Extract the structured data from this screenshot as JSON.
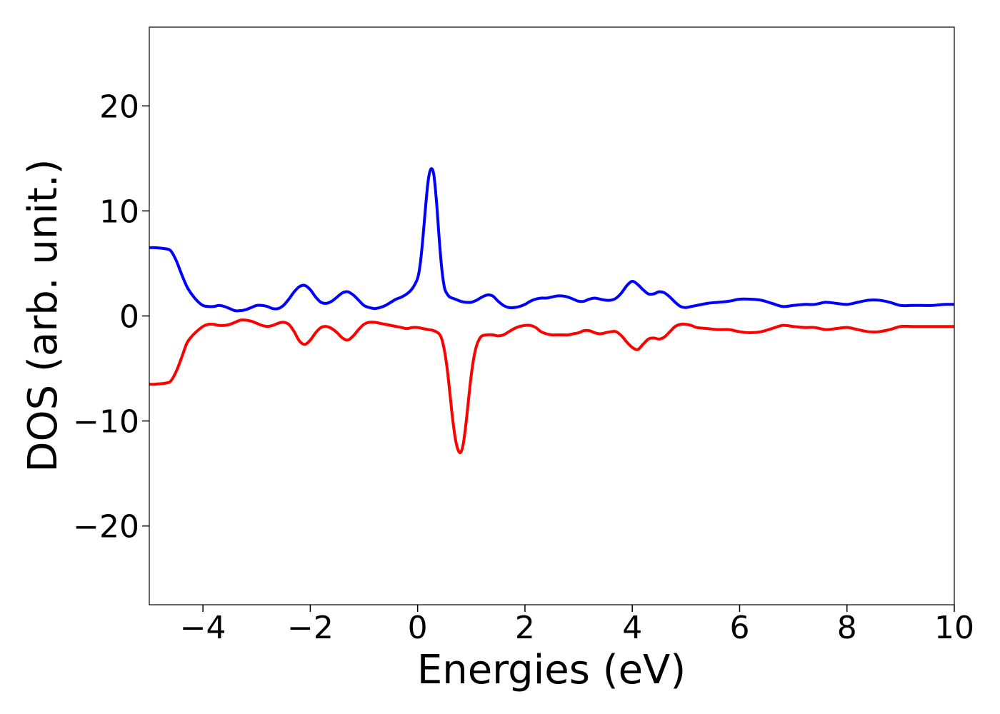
{
  "chart_data": {
    "type": "line",
    "title": "",
    "xlabel": "Energies (eV)",
    "ylabel": "DOS (arb. unit.)",
    "xlim": [
      -5,
      10
    ],
    "ylim": [
      -27.5,
      27.5
    ],
    "grid": false,
    "x_ticks": [
      -4,
      -2,
      0,
      2,
      4,
      6,
      8,
      10
    ],
    "x_tick_labels": [
      "−4",
      "−2",
      "0",
      "2",
      "4",
      "6",
      "8",
      "10"
    ],
    "y_ticks": [
      -20,
      -10,
      0,
      10,
      20
    ],
    "y_tick_labels": [
      "−20",
      "−10",
      "0",
      "10",
      "20"
    ],
    "series": [
      {
        "color": "#0000ff",
        "x": [
          -5.0,
          -4.9,
          -4.7,
          -4.6,
          -4.5,
          -4.4,
          -4.3,
          -4.2,
          -4.1,
          -4.0,
          -3.9,
          -3.8,
          -3.7,
          -3.6,
          -3.5,
          -3.4,
          -3.3,
          -3.2,
          -3.1,
          -3.0,
          -2.9,
          -2.8,
          -2.7,
          -2.6,
          -2.5,
          -2.4,
          -2.3,
          -2.2,
          -2.1,
          -2.0,
          -1.9,
          -1.8,
          -1.7,
          -1.6,
          -1.5,
          -1.4,
          -1.3,
          -1.2,
          -1.1,
          -1.0,
          -0.9,
          -0.8,
          -0.7,
          -0.6,
          -0.5,
          -0.4,
          -0.3,
          -0.2,
          -0.1,
          0.0,
          0.05,
          0.1,
          0.15,
          0.2,
          0.25,
          0.3,
          0.35,
          0.4,
          0.45,
          0.5,
          0.55,
          0.6,
          0.7,
          0.8,
          0.9,
          1.0,
          1.1,
          1.2,
          1.3,
          1.4,
          1.5,
          1.6,
          1.7,
          1.8,
          1.9,
          2.0,
          2.1,
          2.2,
          2.3,
          2.4,
          2.5,
          2.6,
          2.7,
          2.8,
          2.9,
          3.0,
          3.1,
          3.2,
          3.3,
          3.4,
          3.5,
          3.6,
          3.7,
          3.8,
          3.9,
          4.0,
          4.1,
          4.2,
          4.3,
          4.4,
          4.5,
          4.6,
          4.7,
          4.8,
          4.9,
          5.0,
          5.1,
          5.2,
          5.4,
          5.6,
          5.8,
          6.0,
          6.2,
          6.4,
          6.6,
          6.8,
          7.0,
          7.2,
          7.4,
          7.6,
          7.8,
          8.0,
          8.2,
          8.4,
          8.6,
          8.8,
          9.0,
          9.2,
          9.4,
          9.6,
          9.8,
          10.0
        ],
        "y": [
          6.5,
          6.5,
          6.4,
          6.2,
          5.3,
          4.0,
          2.8,
          2.0,
          1.4,
          1.0,
          0.9,
          0.9,
          1.0,
          0.9,
          0.7,
          0.5,
          0.5,
          0.6,
          0.8,
          1.0,
          1.0,
          0.9,
          0.7,
          0.7,
          1.0,
          1.6,
          2.3,
          2.8,
          2.9,
          2.5,
          1.8,
          1.3,
          1.2,
          1.4,
          1.8,
          2.2,
          2.3,
          2.0,
          1.5,
          1.0,
          0.8,
          0.7,
          0.8,
          1.0,
          1.3,
          1.6,
          1.8,
          2.1,
          2.6,
          3.6,
          5.0,
          7.5,
          10.5,
          13.0,
          14.0,
          13.5,
          11.0,
          7.5,
          4.5,
          2.7,
          2.1,
          1.8,
          1.6,
          1.4,
          1.3,
          1.3,
          1.5,
          1.8,
          2.0,
          1.9,
          1.4,
          1.0,
          0.8,
          0.8,
          0.9,
          1.1,
          1.4,
          1.6,
          1.7,
          1.7,
          1.8,
          1.9,
          1.9,
          1.8,
          1.6,
          1.4,
          1.4,
          1.6,
          1.7,
          1.6,
          1.5,
          1.5,
          1.7,
          2.2,
          2.9,
          3.3,
          3.0,
          2.5,
          2.1,
          2.1,
          2.3,
          2.2,
          1.8,
          1.3,
          0.9,
          0.8,
          0.9,
          1.0,
          1.2,
          1.3,
          1.4,
          1.6,
          1.6,
          1.5,
          1.2,
          0.9,
          1.0,
          1.1,
          1.1,
          1.3,
          1.2,
          1.1,
          1.3,
          1.5,
          1.5,
          1.3,
          1.0,
          1.0,
          1.0,
          1.0,
          1.1,
          1.1
        ]
      },
      {
        "color": "#ff0000",
        "x": [
          -5.0,
          -4.9,
          -4.7,
          -4.6,
          -4.5,
          -4.4,
          -4.3,
          -4.2,
          -4.1,
          -4.0,
          -3.9,
          -3.8,
          -3.7,
          -3.6,
          -3.5,
          -3.4,
          -3.3,
          -3.2,
          -3.1,
          -3.0,
          -2.9,
          -2.8,
          -2.7,
          -2.6,
          -2.5,
          -2.4,
          -2.3,
          -2.2,
          -2.1,
          -2.0,
          -1.9,
          -1.8,
          -1.7,
          -1.6,
          -1.5,
          -1.4,
          -1.3,
          -1.2,
          -1.1,
          -1.0,
          -0.9,
          -0.8,
          -0.7,
          -0.6,
          -0.5,
          -0.4,
          -0.3,
          -0.2,
          -0.1,
          0.0,
          0.1,
          0.2,
          0.3,
          0.4,
          0.45,
          0.5,
          0.55,
          0.6,
          0.65,
          0.7,
          0.75,
          0.8,
          0.85,
          0.9,
          0.95,
          1.0,
          1.05,
          1.1,
          1.15,
          1.2,
          1.3,
          1.4,
          1.5,
          1.6,
          1.7,
          1.8,
          1.9,
          2.0,
          2.1,
          2.2,
          2.3,
          2.4,
          2.5,
          2.6,
          2.7,
          2.8,
          2.9,
          3.0,
          3.1,
          3.2,
          3.3,
          3.4,
          3.5,
          3.6,
          3.7,
          3.8,
          3.9,
          4.0,
          4.1,
          4.2,
          4.3,
          4.4,
          4.5,
          4.6,
          4.7,
          4.8,
          4.9,
          5.0,
          5.1,
          5.2,
          5.4,
          5.6,
          5.8,
          6.0,
          6.2,
          6.4,
          6.6,
          6.8,
          7.0,
          7.2,
          7.4,
          7.6,
          7.8,
          8.0,
          8.2,
          8.4,
          8.6,
          8.8,
          9.0,
          9.2,
          9.4,
          9.6,
          9.8,
          10.0
        ],
        "y": [
          -6.5,
          -6.5,
          -6.4,
          -6.2,
          -5.3,
          -4.0,
          -2.6,
          -1.9,
          -1.4,
          -1.0,
          -0.8,
          -0.8,
          -0.9,
          -0.9,
          -0.8,
          -0.6,
          -0.4,
          -0.4,
          -0.5,
          -0.7,
          -0.9,
          -1.0,
          -0.9,
          -0.7,
          -0.6,
          -0.8,
          -1.5,
          -2.4,
          -2.7,
          -2.3,
          -1.6,
          -1.1,
          -1.0,
          -1.2,
          -1.6,
          -2.1,
          -2.3,
          -1.9,
          -1.3,
          -0.8,
          -0.6,
          -0.6,
          -0.7,
          -0.8,
          -0.9,
          -1.0,
          -1.1,
          -1.2,
          -1.1,
          -1.1,
          -1.2,
          -1.3,
          -1.4,
          -1.7,
          -2.2,
          -3.3,
          -5.0,
          -7.3,
          -9.7,
          -11.6,
          -12.7,
          -13.0,
          -12.2,
          -10.3,
          -7.9,
          -5.6,
          -3.9,
          -2.8,
          -2.2,
          -1.9,
          -1.8,
          -1.8,
          -1.9,
          -1.8,
          -1.5,
          -1.2,
          -1.0,
          -0.9,
          -0.9,
          -1.1,
          -1.5,
          -1.7,
          -1.8,
          -1.8,
          -1.8,
          -1.8,
          -1.7,
          -1.6,
          -1.4,
          -1.4,
          -1.6,
          -1.7,
          -1.6,
          -1.5,
          -1.5,
          -1.9,
          -2.5,
          -3.0,
          -3.2,
          -2.7,
          -2.2,
          -2.1,
          -2.2,
          -2.0,
          -1.5,
          -1.0,
          -0.8,
          -0.8,
          -0.9,
          -1.1,
          -1.2,
          -1.3,
          -1.3,
          -1.5,
          -1.6,
          -1.5,
          -1.2,
          -0.9,
          -1.0,
          -1.1,
          -1.1,
          -1.3,
          -1.2,
          -1.1,
          -1.3,
          -1.5,
          -1.5,
          -1.3,
          -1.0,
          -1.0,
          -1.0,
          -1.0,
          -1.0,
          -1.0
        ]
      }
    ]
  }
}
